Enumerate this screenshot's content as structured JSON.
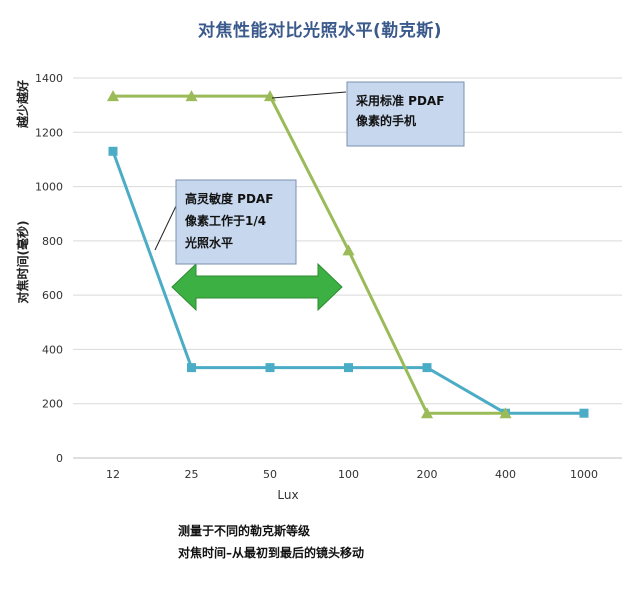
{
  "chart_data": {
    "type": "line",
    "title": "对焦性能对比光照水平(勒克斯)",
    "xlabel": "Lux",
    "ylabel": "对焦时间(毫秒)",
    "y_top_label": "越少越好",
    "categories": [
      "12",
      "25",
      "50",
      "100",
      "200",
      "400",
      "1000"
    ],
    "ylim": [
      0,
      1400
    ],
    "yticks": [
      0,
      200,
      400,
      600,
      800,
      1000,
      1200,
      1400
    ],
    "grid": true,
    "series": [
      {
        "values": [
          1130,
          333,
          333,
          333,
          333,
          165,
          165
        ],
        "color": "#4bacc6",
        "marker": "square"
      },
      {
        "values": [
          1333,
          1333,
          1333,
          765,
          165,
          165,
          null
        ],
        "color": "#9bbb59",
        "marker": "triangle"
      }
    ],
    "annotations": [
      {
        "lines": [
          "采用标准 PDAF",
          "像素的手机"
        ]
      },
      {
        "lines": [
          "高灵敏度 PDAF",
          "像素工作于1/4",
          "光照水平"
        ]
      }
    ],
    "arrow_color": "#3cb043"
  },
  "footnotes": [
    "测量于不同的勒克斯等级",
    "对焦时间–从最初到最后的镜头移动"
  ]
}
